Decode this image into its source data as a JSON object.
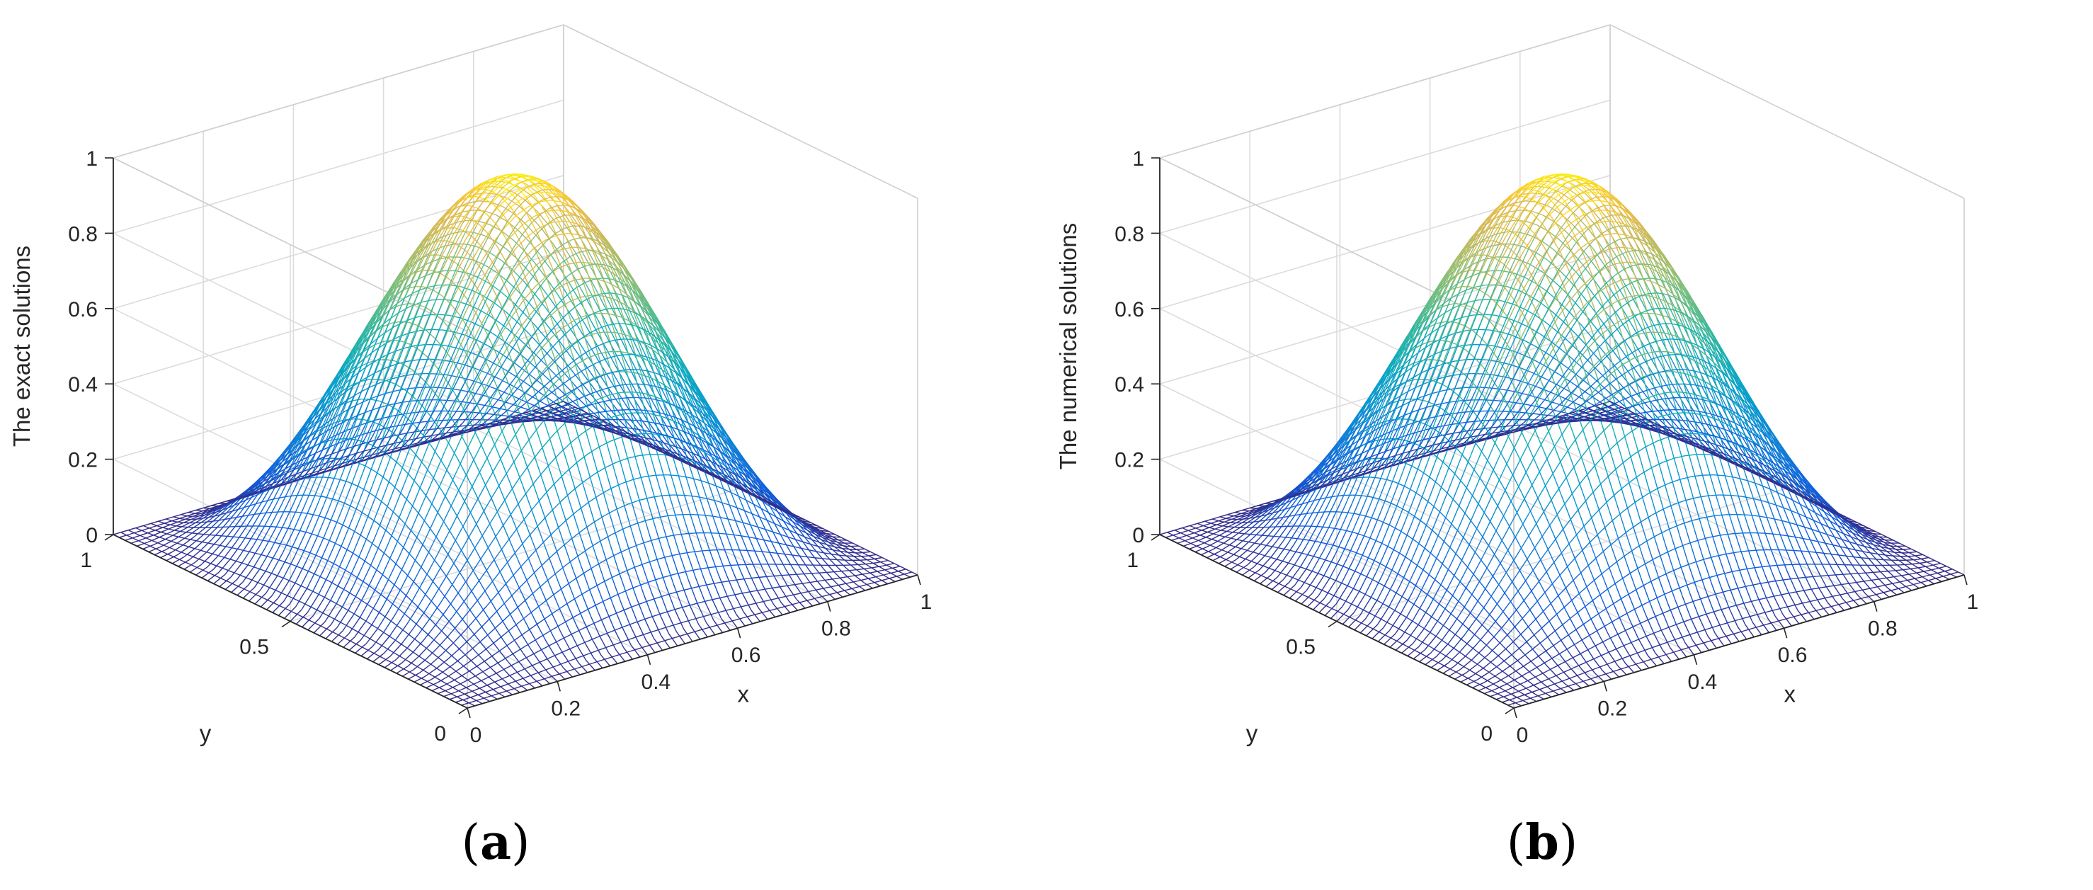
{
  "chart_data": [
    {
      "type": "surface",
      "panel_label": "a",
      "zlabel": "The exact solutions",
      "xlabel": "x",
      "ylabel": "y",
      "x_range": [
        0,
        1
      ],
      "y_range": [
        0,
        1
      ],
      "z_range": [
        0,
        1
      ],
      "x_ticks": [
        "0",
        "0.2",
        "0.4",
        "0.6",
        "0.8",
        "1"
      ],
      "y_ticks": [
        "0",
        "0.5",
        "1"
      ],
      "z_ticks": [
        "0",
        "0.2",
        "0.4",
        "0.6",
        "0.8",
        "1"
      ],
      "grid": true,
      "colormap": "parula",
      "peak_value": 0.98,
      "function": "sin(pi*x)^2 * sin(pi*y)^2 style bump, peak ~1 near center"
    },
    {
      "type": "surface",
      "panel_label": "b",
      "zlabel": "The numerical solutions",
      "xlabel": "x",
      "ylabel": "y",
      "x_range": [
        0,
        1
      ],
      "y_range": [
        0,
        1
      ],
      "z_range": [
        0,
        1
      ],
      "x_ticks": [
        "0",
        "0.2",
        "0.4",
        "0.6",
        "0.8",
        "1"
      ],
      "y_ticks": [
        "0",
        "0.5",
        "1"
      ],
      "z_ticks": [
        "0",
        "0.2",
        "0.4",
        "0.6",
        "0.8",
        "1"
      ],
      "grid": true,
      "colormap": "parula",
      "peak_value": 0.98,
      "function": "sin(pi*x)^2 * sin(pi*y)^2 style bump, peak ~1 near center"
    }
  ],
  "captions": [
    "a",
    "b"
  ]
}
